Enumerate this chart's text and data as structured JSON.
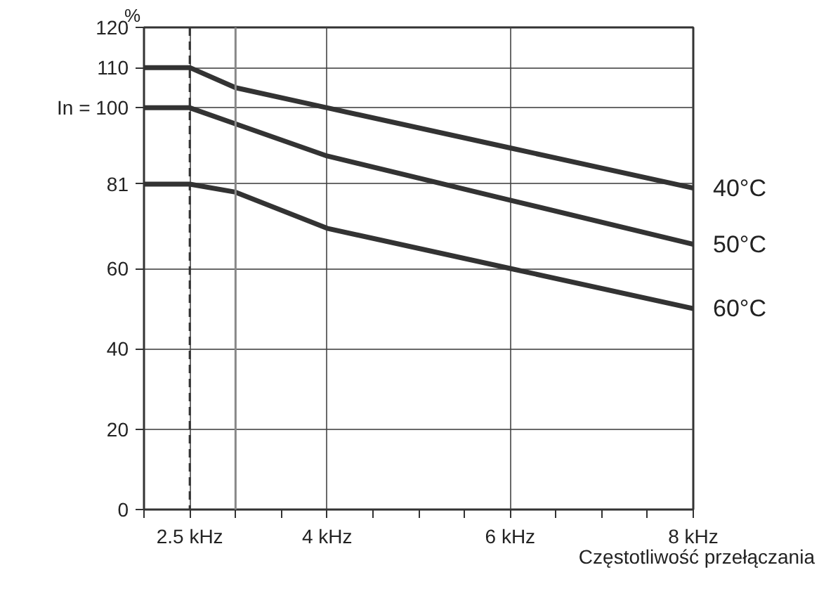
{
  "chart_data": {
    "type": "line",
    "ylabel": "%",
    "xlabel": "Częstotliwość przełączania",
    "x": [
      2,
      2.5,
      3,
      4,
      6,
      8
    ],
    "series": [
      {
        "name": "40°C",
        "color": "#333333",
        "values": [
          110,
          110,
          105,
          100,
          90,
          80
        ]
      },
      {
        "name": "50°C",
        "color": "#333333",
        "values": [
          100,
          100,
          96,
          88,
          77,
          66
        ]
      },
      {
        "name": "60°C",
        "color": "#333333",
        "values": [
          81,
          81,
          79,
          70,
          60,
          50
        ]
      }
    ],
    "xlim": [
      2,
      8
    ],
    "ylim": [
      0,
      120
    ],
    "xticks": [
      {
        "value": 2,
        "label": null
      },
      {
        "value": 2.5,
        "label": "2.5 kHz"
      },
      {
        "value": 3,
        "label": null
      },
      {
        "value": 3.5,
        "label": null
      },
      {
        "value": 4,
        "label": "4 kHz"
      },
      {
        "value": 4.5,
        "label": null
      },
      {
        "value": 5,
        "label": null
      },
      {
        "value": 5.5,
        "label": null
      },
      {
        "value": 6,
        "label": "6 kHz"
      },
      {
        "value": 6.5,
        "label": null
      },
      {
        "value": 7,
        "label": null
      },
      {
        "value": 7.5,
        "label": null
      },
      {
        "value": 8,
        "label": "8 kHz"
      }
    ],
    "yticks": [
      0,
      20,
      40,
      60,
      81,
      {
        "value": 100,
        "label": "In = 100"
      },
      110,
      120
    ],
    "ref_lines": [
      {
        "axis": "x",
        "value": 2.5,
        "line_style": "dashed",
        "color": "#333333"
      },
      {
        "axis": "x",
        "value": 3,
        "color": "#888888"
      }
    ],
    "grid": true,
    "line_style": "solid"
  }
}
